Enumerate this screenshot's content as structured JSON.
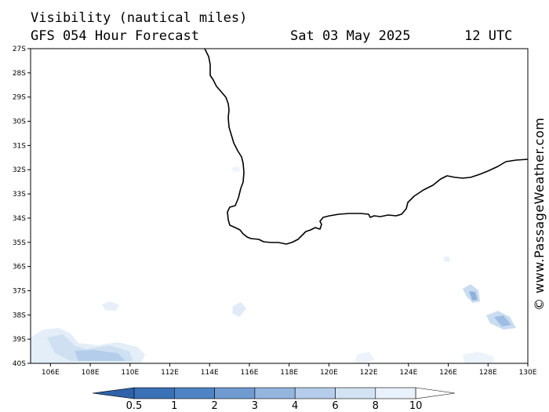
{
  "header": {
    "title": "Visibility (nautical miles)",
    "subtitle": "GFS 054 Hour Forecast",
    "date": "Sat 03 May 2025",
    "time": "12 UTC"
  },
  "watermark": "© www.PassageWeather.com",
  "map": {
    "lat_labels": [
      "27S",
      "28S",
      "29S",
      "30S",
      "31S",
      "32S",
      "33S",
      "34S",
      "35S",
      "36S",
      "37S",
      "38S",
      "39S",
      "40S"
    ],
    "lon_labels": [
      "106E",
      "108E",
      "110E",
      "112E",
      "114E",
      "116E",
      "118E",
      "120E",
      "122E",
      "124E",
      "126E",
      "128E",
      "130E"
    ],
    "lon_range": [
      105,
      130
    ],
    "lat_range": [
      -27,
      -40
    ]
  },
  "colorbar": {
    "labels": [
      "0.5",
      "1",
      "2",
      "3",
      "4",
      "6",
      "8",
      "10"
    ],
    "colors": [
      "#3a70b5",
      "#4f84c4",
      "#6f9bd0",
      "#93b5de",
      "#b5cdea",
      "#d2e2f3",
      "#e9f1fa",
      "#ffffff"
    ]
  },
  "colors": {
    "land": "#ffffff",
    "sea": "#ffffff",
    "coast": "#000000",
    "fog_light": "#dde9f6",
    "fog_med": "#b9d1ec",
    "fog_dark": "#7fa9d8"
  }
}
